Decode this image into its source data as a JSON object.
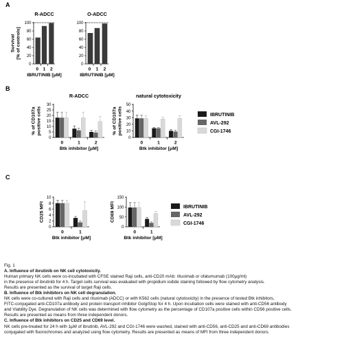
{
  "caption": {
    "fig_label": "Fig. 1",
    "a_title": "A. Influence of ibrutinib on NK cell cytotoxicity.",
    "a_lines": [
      "Human primary NK cells were co-incubated with CFSE stained Raji cells, anti-CD20 mAb: rituximab or ofatumumab (100μg/ml)",
      "in the presence of ibrutinib for 4 h. Target cells survival was evaluated with propidium iodide staining followed by flow cytometry analysis.",
      "Results are presented as the survival of target Raji cells."
    ],
    "b_title": "B. Influence of Btk inhibitors on NK cell degranulation.",
    "b_lines": [
      "NK cells were co-cultured with Raji cells and rituximab (ADCC) or with K562 cells (natural cytotoxicity) in the presence of tested Btk inhibitors,",
      "FITC-conjugated anti-CD107a antibody and protein transport inhibitor GolgiStop for 4 h. Upon incubation cells were stained with anti-CD56 antibody",
      "and Viability Dye. Degranulation of NK cells was determined with flow cytometry as the percentage of CD107a positive cells within CD56 positive cells.",
      "Results are presented as means from three independent donors."
    ],
    "c_title": "C. Influence of Btk inhibitors on CD25 and CD69 level.",
    "c_lines": [
      "NK cells pre-treated for 24 h with 1μM of ibrutinib, AVL-292 and CGI-1746 were washed, stained with anti-CD56, anti-CD25 and anti-CD69 antibodies",
      "conjugated with fluorochromes and analyzed using flow cytometry. Results are presented as means of MFI from three independent donors."
    ]
  },
  "colors": {
    "ibrutinib": "#1a1a1a",
    "avl292": "#666666",
    "cgi1746": "#d9d9d9"
  },
  "chart_data": [
    {
      "panel": "A",
      "type": "bar",
      "title": "R-ADCC",
      "ylabel": "Survival [% of controls]",
      "xlabel": "IBRUTINIB [μM]",
      "categories": [
        "0",
        "1",
        "2"
      ],
      "values": [
        64,
        92,
        99
      ],
      "ylim": [
        0,
        100
      ],
      "yticks": [
        "0",
        "20",
        "40",
        "60",
        "80",
        "100"
      ],
      "grid": false
    },
    {
      "panel": "A",
      "type": "bar",
      "title": "O-ADCC",
      "xlabel": "IBRUTINIB [μM]",
      "categories": [
        "0",
        "1",
        "2"
      ],
      "values": [
        75,
        87,
        98
      ],
      "ylim": [
        0,
        100
      ],
      "yticks": [
        "0",
        "20",
        "40",
        "60",
        "80",
        "100"
      ],
      "grid": false
    },
    {
      "panel": "B",
      "type": "bar",
      "title": "R-ADCC",
      "ylabel": "% of CD107a positive cells",
      "xlabel": "Btk inhibitor [μM]",
      "categories": [
        "0",
        "1",
        "2"
      ],
      "ylim": [
        0,
        30
      ],
      "yticks": [
        "0",
        "5",
        "10",
        "15",
        "20",
        "25",
        "30"
      ],
      "series": [
        {
          "name": "IBRUTINIB",
          "values": [
            18,
            8,
            5
          ],
          "errors": [
            5,
            2.5,
            1.5
          ]
        },
        {
          "name": "AVL-292",
          "values": [
            18,
            6.5,
            4.5
          ],
          "errors": [
            5,
            2,
            1.5
          ]
        },
        {
          "name": "CGI-1746",
          "values": [
            18,
            18,
            14.5
          ],
          "errors": [
            5,
            5,
            4.5
          ]
        }
      ]
    },
    {
      "panel": "B",
      "type": "bar",
      "title": "natural cytotoxicity",
      "ylabel": "% of CD107a positive cells",
      "xlabel": "Btk inhibitor [μM]",
      "categories": [
        "0",
        "1",
        "2"
      ],
      "ylim": [
        0,
        50
      ],
      "yticks": [
        "0",
        "10",
        "20",
        "30",
        "40",
        "50"
      ],
      "legend": "right",
      "series": [
        {
          "name": "IBRUTINIB",
          "values": [
            29,
            14,
            10
          ],
          "errors": [
            5,
            1,
            2
          ]
        },
        {
          "name": "AVL-292",
          "values": [
            29,
            14,
            9
          ],
          "errors": [
            5,
            1,
            2
          ]
        },
        {
          "name": "CGI-1746",
          "values": [
            29,
            28,
            29
          ],
          "errors": [
            4,
            3,
            4
          ]
        }
      ]
    },
    {
      "panel": "C",
      "type": "bar",
      "ylabel": "CD25 MFI",
      "xlabel": "Btk inhibitor [μM]",
      "categories": [
        "0",
        "1"
      ],
      "ylim": [
        0,
        10
      ],
      "yticks": [
        "0",
        "2",
        "4",
        "6",
        "8",
        "10"
      ],
      "series": [
        {
          "name": "IBRUTINIB",
          "values": [
            8,
            3
          ],
          "errors": [
            1,
            0.5
          ]
        },
        {
          "name": "AVL-292",
          "values": [
            8,
            1.5
          ],
          "errors": [
            1,
            0.5
          ]
        },
        {
          "name": "CGI-1746",
          "values": [
            8,
            5.5
          ],
          "errors": [
            1,
            3
          ]
        }
      ]
    },
    {
      "panel": "C",
      "type": "bar",
      "ylabel": "CD69 MFI",
      "xlabel": "Btk inhibitor [μM]",
      "categories": [
        "0",
        "1"
      ],
      "ylim": [
        0,
        150
      ],
      "yticks": [
        "0",
        "50",
        "100",
        "150"
      ],
      "legend": "right",
      "series": [
        {
          "name": "IBRUTINIB",
          "values": [
            98,
            40
          ],
          "errors": [
            25,
            8
          ]
        },
        {
          "name": "AVL-292",
          "values": [
            98,
            20
          ],
          "errors": [
            25,
            5
          ]
        },
        {
          "name": "CGI-1746",
          "values": [
            98,
            68
          ],
          "errors": [
            25,
            10
          ]
        }
      ]
    }
  ]
}
